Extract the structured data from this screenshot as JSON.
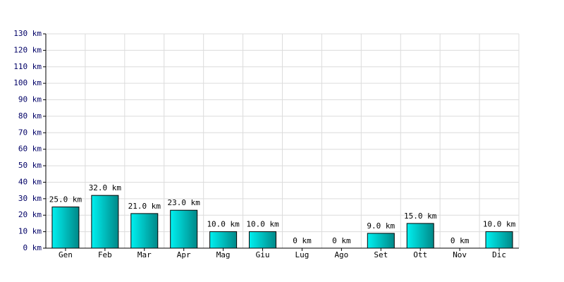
{
  "chart_data": {
    "type": "bar",
    "categories": [
      "Gen",
      "Feb",
      "Mar",
      "Apr",
      "Mag",
      "Giu",
      "Lug",
      "Ago",
      "Set",
      "Ott",
      "Nov",
      "Dic"
    ],
    "values": [
      25,
      32,
      21,
      23,
      10,
      10,
      0,
      0,
      9,
      15,
      0,
      10
    ],
    "value_labels": [
      "25.0 km",
      "32.0 km",
      "21.0 km",
      "23.0 km",
      "10.0 km",
      "10.0 km",
      "0 km",
      "0 km",
      "9.0 km",
      "15.0 km",
      "0 km",
      "10.0 km"
    ],
    "color": "#00cccc",
    "ylim": [
      0,
      130
    ],
    "yticks": [
      {
        "value": 0,
        "label": "0 km"
      },
      {
        "value": 10,
        "label": "10 km"
      },
      {
        "value": 20,
        "label": "20 km"
      },
      {
        "value": 30,
        "label": "30 km"
      },
      {
        "value": 40,
        "label": "40 km"
      },
      {
        "value": 50,
        "label": "50 km"
      },
      {
        "value": 60,
        "label": "60 km"
      },
      {
        "value": 70,
        "label": "70 km"
      },
      {
        "value": 80,
        "label": "80 km"
      },
      {
        "value": 90,
        "label": "90 km"
      },
      {
        "value": 100,
        "label": "100 km"
      },
      {
        "value": 110,
        "label": "110 km"
      },
      {
        "value": 120,
        "label": "120 km"
      },
      {
        "value": 130,
        "label": "130 km"
      }
    ],
    "grid": true
  }
}
